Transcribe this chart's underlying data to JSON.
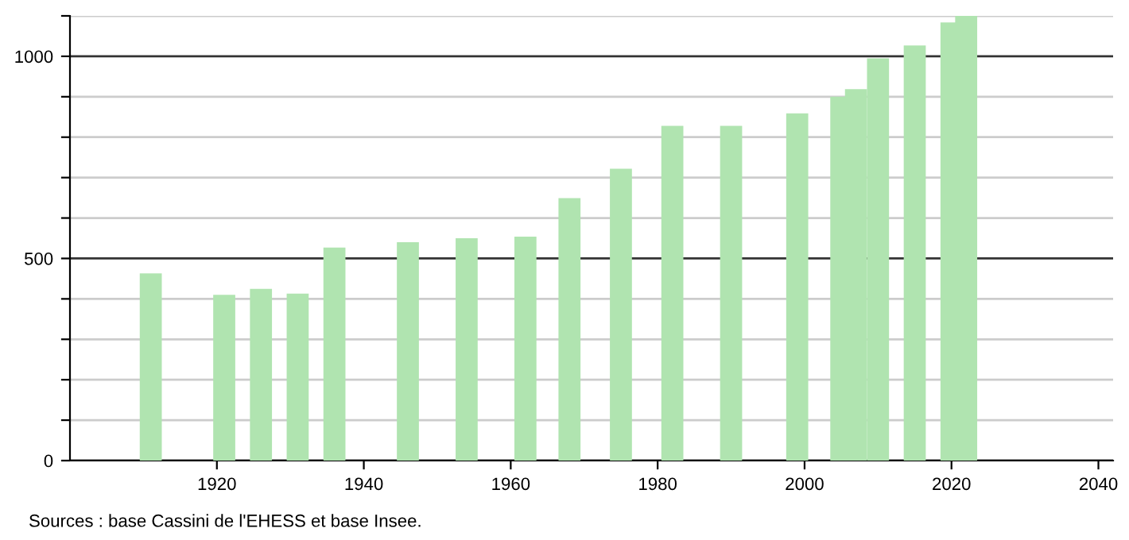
{
  "chart_data": {
    "type": "bar",
    "x": [
      1911,
      1921,
      1926,
      1931,
      1936,
      1946,
      1954,
      1962,
      1968,
      1975,
      1982,
      1990,
      1999,
      2005,
      2007,
      2010,
      2015,
      2020,
      2022
    ],
    "values": [
      463,
      410,
      425,
      413,
      527,
      540,
      550,
      554,
      649,
      722,
      828,
      828,
      859,
      900,
      919,
      995,
      1027,
      1084,
      1100
    ],
    "color": "#b0e4b0",
    "xlim": [
      1900,
      2042
    ],
    "xticks": [
      1920,
      1940,
      1960,
      1980,
      2000,
      2020,
      2040
    ],
    "ylim": [
      0,
      1100
    ],
    "yticks": [
      0,
      {
        "value": 100,
        "label": null
      },
      {
        "value": 200,
        "label": null
      },
      {
        "value": 300,
        "label": null
      },
      {
        "value": 400,
        "label": null
      },
      500,
      {
        "value": 600,
        "label": null
      },
      {
        "value": 700,
        "label": null
      },
      {
        "value": 800,
        "label": null
      },
      {
        "value": 900,
        "label": null
      },
      1000,
      {
        "value": 1100,
        "label": null
      }
    ],
    "grid": "y",
    "annotations": [
      "Sources : base Cassini de l'EHESS et base Insee."
    ]
  }
}
